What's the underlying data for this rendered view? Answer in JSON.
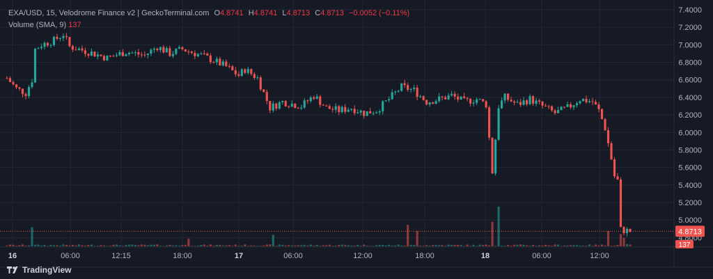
{
  "legend": {
    "title": "EXA/USD, 15, Velodrome Finance v2 | GeckoTerminal.com",
    "open_key": "O",
    "open": "4.8741",
    "high_key": "H",
    "high": "4.8741",
    "low_key": "L",
    "low": "4.8713",
    "close_key": "C",
    "close": "4.8713",
    "change": "−0.0052 (−0.11%)",
    "volume_label": "Volume (SMA, 9)",
    "volume_value": "137"
  },
  "brand": {
    "name": "TradingView",
    "icon": "tradingview-logo-icon"
  },
  "colors": {
    "up": "#26a69a",
    "down": "#ef5350",
    "background": "#161a25",
    "grid": "#232733",
    "text": "#b2b5be"
  },
  "chart_data": {
    "type": "candlestick",
    "title": "EXA/USD, 15, Velodrome Finance v2 | GeckoTerminal.com",
    "ylim": [
      4.7,
      7.4
    ],
    "y_ticks": [
      "7.4000",
      "7.2000",
      "7.0000",
      "6.8000",
      "6.6000",
      "6.4000",
      "6.2000",
      "6.0000",
      "5.8000",
      "5.6000",
      "5.4000",
      "5.2000",
      "5.0000",
      "4.8000"
    ],
    "x_ticks": [
      {
        "label": "16",
        "bold": true
      },
      {
        "label": "06:00",
        "bold": false
      },
      {
        "label": "12:15",
        "bold": false
      },
      {
        "label": "18:00",
        "bold": false
      },
      {
        "label": "17",
        "bold": true
      },
      {
        "label": "06:00",
        "bold": false
      },
      {
        "label": "12:00",
        "bold": false
      },
      {
        "label": "18:00",
        "bold": false
      },
      {
        "label": "18",
        "bold": true
      },
      {
        "label": "06:00",
        "bold": false
      },
      {
        "label": "12:00",
        "bold": false
      }
    ],
    "last_price": "4.8713",
    "last_volume": "137",
    "close_path": [
      [
        0,
        6.62
      ],
      [
        3,
        6.5
      ],
      [
        6,
        6.45
      ],
      [
        8,
        6.6
      ],
      [
        9,
        6.95
      ],
      [
        11,
        7.0
      ],
      [
        15,
        7.05
      ],
      [
        18,
        7.12
      ],
      [
        20,
        6.98
      ],
      [
        26,
        6.92
      ],
      [
        32,
        6.85
      ],
      [
        38,
        6.92
      ],
      [
        44,
        6.88
      ],
      [
        48,
        6.98
      ],
      [
        52,
        6.9
      ],
      [
        56,
        6.95
      ],
      [
        62,
        6.88
      ],
      [
        66,
        6.82
      ],
      [
        70,
        6.75
      ],
      [
        74,
        6.65
      ],
      [
        76,
        6.72
      ],
      [
        80,
        6.62
      ],
      [
        82,
        6.45
      ],
      [
        84,
        6.28
      ],
      [
        88,
        6.35
      ],
      [
        94,
        6.3
      ],
      [
        98,
        6.42
      ],
      [
        102,
        6.28
      ],
      [
        106,
        6.25
      ],
      [
        110,
        6.28
      ],
      [
        114,
        6.22
      ],
      [
        118,
        6.25
      ],
      [
        122,
        6.38
      ],
      [
        126,
        6.52
      ],
      [
        130,
        6.48
      ],
      [
        134,
        6.35
      ],
      [
        138,
        6.38
      ],
      [
        142,
        6.42
      ],
      [
        146,
        6.35
      ],
      [
        150,
        6.38
      ],
      [
        153,
        6.32
      ],
      [
        155,
        5.55
      ],
      [
        157,
        6.3
      ],
      [
        159,
        6.4
      ],
      [
        163,
        6.32
      ],
      [
        167,
        6.38
      ],
      [
        171,
        6.3
      ],
      [
        175,
        6.22
      ],
      [
        179,
        6.28
      ],
      [
        183,
        6.38
      ],
      [
        187,
        6.35
      ],
      [
        189,
        6.25
      ],
      [
        191,
        6.05
      ],
      [
        193,
        5.7
      ],
      [
        194,
        5.5
      ],
      [
        195,
        5.45
      ],
      [
        196,
        4.89
      ],
      [
        199,
        4.8713
      ]
    ],
    "volume_spikes": [
      [
        8,
        2.5
      ],
      [
        58,
        1.0
      ],
      [
        85,
        1.5
      ],
      [
        128,
        2.8
      ],
      [
        131,
        2.0
      ],
      [
        155,
        3.2
      ],
      [
        157,
        5.2
      ],
      [
        192,
        2.0
      ],
      [
        196,
        1.6
      ],
      [
        197,
        1.1
      ],
      [
        198,
        0.3
      ]
    ],
    "candle_count": 200
  }
}
